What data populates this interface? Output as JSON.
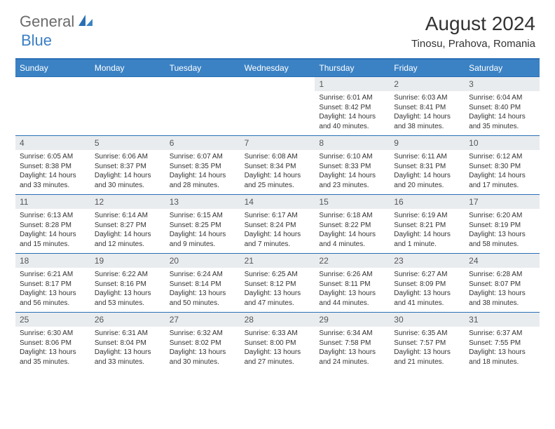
{
  "logo": {
    "text1": "General",
    "text2": "Blue"
  },
  "title": "August 2024",
  "location": "Tinosu, Prahova, Romania",
  "dayNames": [
    "Sunday",
    "Monday",
    "Tuesday",
    "Wednesday",
    "Thursday",
    "Friday",
    "Saturday"
  ],
  "colors": {
    "headerBar": "#3b82c4",
    "ruleLine": "#2a6fb5",
    "dayNumBg": "#e9ecef",
    "logoGray": "#6b6b6b",
    "logoBlue": "#3b7fc4"
  },
  "weeks": [
    [
      {
        "n": "",
        "sunrise": "",
        "sunset": "",
        "daylight": ""
      },
      {
        "n": "",
        "sunrise": "",
        "sunset": "",
        "daylight": ""
      },
      {
        "n": "",
        "sunrise": "",
        "sunset": "",
        "daylight": ""
      },
      {
        "n": "",
        "sunrise": "",
        "sunset": "",
        "daylight": ""
      },
      {
        "n": "1",
        "sunrise": "Sunrise: 6:01 AM",
        "sunset": "Sunset: 8:42 PM",
        "daylight": "Daylight: 14 hours and 40 minutes."
      },
      {
        "n": "2",
        "sunrise": "Sunrise: 6:03 AM",
        "sunset": "Sunset: 8:41 PM",
        "daylight": "Daylight: 14 hours and 38 minutes."
      },
      {
        "n": "3",
        "sunrise": "Sunrise: 6:04 AM",
        "sunset": "Sunset: 8:40 PM",
        "daylight": "Daylight: 14 hours and 35 minutes."
      }
    ],
    [
      {
        "n": "4",
        "sunrise": "Sunrise: 6:05 AM",
        "sunset": "Sunset: 8:38 PM",
        "daylight": "Daylight: 14 hours and 33 minutes."
      },
      {
        "n": "5",
        "sunrise": "Sunrise: 6:06 AM",
        "sunset": "Sunset: 8:37 PM",
        "daylight": "Daylight: 14 hours and 30 minutes."
      },
      {
        "n": "6",
        "sunrise": "Sunrise: 6:07 AM",
        "sunset": "Sunset: 8:35 PM",
        "daylight": "Daylight: 14 hours and 28 minutes."
      },
      {
        "n": "7",
        "sunrise": "Sunrise: 6:08 AM",
        "sunset": "Sunset: 8:34 PM",
        "daylight": "Daylight: 14 hours and 25 minutes."
      },
      {
        "n": "8",
        "sunrise": "Sunrise: 6:10 AM",
        "sunset": "Sunset: 8:33 PM",
        "daylight": "Daylight: 14 hours and 23 minutes."
      },
      {
        "n": "9",
        "sunrise": "Sunrise: 6:11 AM",
        "sunset": "Sunset: 8:31 PM",
        "daylight": "Daylight: 14 hours and 20 minutes."
      },
      {
        "n": "10",
        "sunrise": "Sunrise: 6:12 AM",
        "sunset": "Sunset: 8:30 PM",
        "daylight": "Daylight: 14 hours and 17 minutes."
      }
    ],
    [
      {
        "n": "11",
        "sunrise": "Sunrise: 6:13 AM",
        "sunset": "Sunset: 8:28 PM",
        "daylight": "Daylight: 14 hours and 15 minutes."
      },
      {
        "n": "12",
        "sunrise": "Sunrise: 6:14 AM",
        "sunset": "Sunset: 8:27 PM",
        "daylight": "Daylight: 14 hours and 12 minutes."
      },
      {
        "n": "13",
        "sunrise": "Sunrise: 6:15 AM",
        "sunset": "Sunset: 8:25 PM",
        "daylight": "Daylight: 14 hours and 9 minutes."
      },
      {
        "n": "14",
        "sunrise": "Sunrise: 6:17 AM",
        "sunset": "Sunset: 8:24 PM",
        "daylight": "Daylight: 14 hours and 7 minutes."
      },
      {
        "n": "15",
        "sunrise": "Sunrise: 6:18 AM",
        "sunset": "Sunset: 8:22 PM",
        "daylight": "Daylight: 14 hours and 4 minutes."
      },
      {
        "n": "16",
        "sunrise": "Sunrise: 6:19 AM",
        "sunset": "Sunset: 8:21 PM",
        "daylight": "Daylight: 14 hours and 1 minute."
      },
      {
        "n": "17",
        "sunrise": "Sunrise: 6:20 AM",
        "sunset": "Sunset: 8:19 PM",
        "daylight": "Daylight: 13 hours and 58 minutes."
      }
    ],
    [
      {
        "n": "18",
        "sunrise": "Sunrise: 6:21 AM",
        "sunset": "Sunset: 8:17 PM",
        "daylight": "Daylight: 13 hours and 56 minutes."
      },
      {
        "n": "19",
        "sunrise": "Sunrise: 6:22 AM",
        "sunset": "Sunset: 8:16 PM",
        "daylight": "Daylight: 13 hours and 53 minutes."
      },
      {
        "n": "20",
        "sunrise": "Sunrise: 6:24 AM",
        "sunset": "Sunset: 8:14 PM",
        "daylight": "Daylight: 13 hours and 50 minutes."
      },
      {
        "n": "21",
        "sunrise": "Sunrise: 6:25 AM",
        "sunset": "Sunset: 8:12 PM",
        "daylight": "Daylight: 13 hours and 47 minutes."
      },
      {
        "n": "22",
        "sunrise": "Sunrise: 6:26 AM",
        "sunset": "Sunset: 8:11 PM",
        "daylight": "Daylight: 13 hours and 44 minutes."
      },
      {
        "n": "23",
        "sunrise": "Sunrise: 6:27 AM",
        "sunset": "Sunset: 8:09 PM",
        "daylight": "Daylight: 13 hours and 41 minutes."
      },
      {
        "n": "24",
        "sunrise": "Sunrise: 6:28 AM",
        "sunset": "Sunset: 8:07 PM",
        "daylight": "Daylight: 13 hours and 38 minutes."
      }
    ],
    [
      {
        "n": "25",
        "sunrise": "Sunrise: 6:30 AM",
        "sunset": "Sunset: 8:06 PM",
        "daylight": "Daylight: 13 hours and 35 minutes."
      },
      {
        "n": "26",
        "sunrise": "Sunrise: 6:31 AM",
        "sunset": "Sunset: 8:04 PM",
        "daylight": "Daylight: 13 hours and 33 minutes."
      },
      {
        "n": "27",
        "sunrise": "Sunrise: 6:32 AM",
        "sunset": "Sunset: 8:02 PM",
        "daylight": "Daylight: 13 hours and 30 minutes."
      },
      {
        "n": "28",
        "sunrise": "Sunrise: 6:33 AM",
        "sunset": "Sunset: 8:00 PM",
        "daylight": "Daylight: 13 hours and 27 minutes."
      },
      {
        "n": "29",
        "sunrise": "Sunrise: 6:34 AM",
        "sunset": "Sunset: 7:58 PM",
        "daylight": "Daylight: 13 hours and 24 minutes."
      },
      {
        "n": "30",
        "sunrise": "Sunrise: 6:35 AM",
        "sunset": "Sunset: 7:57 PM",
        "daylight": "Daylight: 13 hours and 21 minutes."
      },
      {
        "n": "31",
        "sunrise": "Sunrise: 6:37 AM",
        "sunset": "Sunset: 7:55 PM",
        "daylight": "Daylight: 13 hours and 18 minutes."
      }
    ]
  ]
}
